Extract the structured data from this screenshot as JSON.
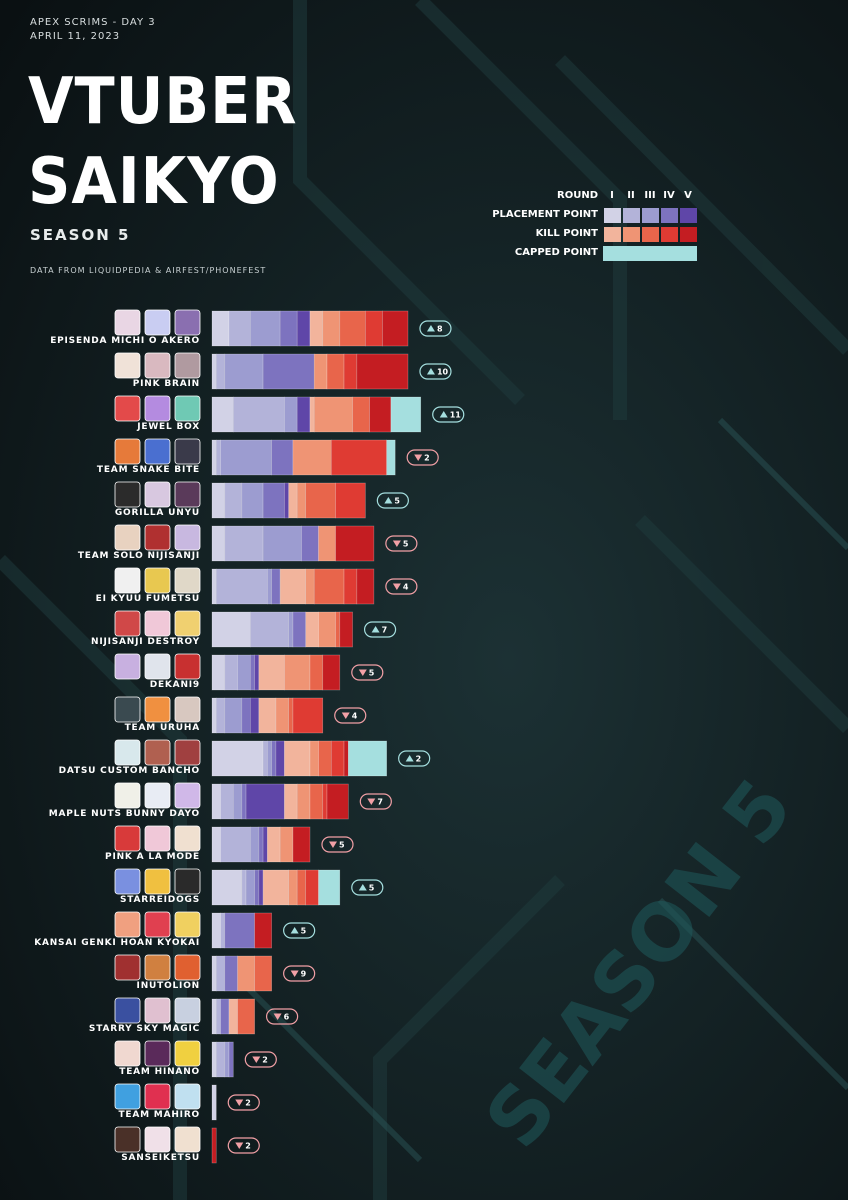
{
  "header": {
    "kicker_1": "APEX SCRIMS - DAY 3",
    "kicker_2": "APRIL 11, 2023",
    "title_line_1": "VTUBER",
    "title_line_2": "SAIKYO",
    "subtitle": "SEASON 5",
    "source": "DATA FROM LIQUIDPEDIA & AIRFEST/PHONEFEST",
    "background_watermark": "SEASON 5"
  },
  "legend": {
    "round_label": "ROUND",
    "rounds": [
      "I",
      "II",
      "III",
      "IV",
      "V"
    ],
    "placement_label": "PLACEMENT POINT",
    "kill_label": "KILL POINT",
    "capped_label": "CAPPED POINT",
    "placement_colors": [
      "#d2d2e6",
      "#b3b3d9",
      "#9c9cd0",
      "#7d73bf",
      "#5f46a8"
    ],
    "kill_colors": [
      "#f2b49c",
      "#ef9474",
      "#e8654b",
      "#df3b33",
      "#c41d22"
    ],
    "capped_color": "#a5dfdf"
  },
  "chart_data": {
    "type": "bar",
    "orientation": "horizontal",
    "stacked": true,
    "title": "VTUBER SAIKYO",
    "subtitle": "SEASON 5",
    "categories": [
      "EPISENDA MICHI O AKERO",
      "PINK BRAIN",
      "JEWEL BOX",
      "TEAM SNAKE BITE",
      "GORILLA UNYU",
      "TEAM SOLO NIJISANJI",
      "EI KYUU FUMETSU",
      "NIJISANJI DESTROY",
      "DEKANI9",
      "TEAM URUHA",
      "DATSU CUSTOM BANCHO",
      "MAPLE NUTS BUNNY DAYO",
      "PINK A LA MODE",
      "STARREIDOGS",
      "KANSAI GENKI HOAN KYOKAI",
      "INUTOLION",
      "STARRY SKY MAGIC",
      "TEAM HINANO",
      "TEAM MAHIRO",
      "SANSEIKETSU"
    ],
    "series": [
      {
        "name": "PLACEMENT POINT I",
        "group": "placement",
        "values": [
          8,
          2,
          10,
          2,
          6,
          6,
          2,
          18,
          6,
          2,
          24,
          4,
          4,
          14,
          4,
          2,
          2,
          2,
          2,
          0
        ]
      },
      {
        "name": "PLACEMENT POINT II",
        "group": "placement",
        "values": [
          10,
          4,
          24,
          2,
          8,
          18,
          24,
          18,
          6,
          4,
          2,
          6,
          14,
          2,
          2,
          4,
          2,
          4,
          0,
          0
        ]
      },
      {
        "name": "PLACEMENT POINT III",
        "group": "placement",
        "values": [
          14,
          18,
          6,
          24,
          10,
          18,
          2,
          2,
          6,
          8,
          2,
          4,
          4,
          4,
          0,
          0,
          0,
          2,
          0,
          0
        ]
      },
      {
        "name": "PLACEMENT POINT IV",
        "group": "placement",
        "values": [
          8,
          24,
          0,
          10,
          10,
          8,
          4,
          6,
          2,
          4,
          2,
          2,
          2,
          2,
          14,
          6,
          4,
          2,
          0,
          0
        ]
      },
      {
        "name": "PLACEMENT POINT V",
        "group": "placement",
        "values": [
          6,
          0,
          6,
          0,
          2,
          0,
          0,
          0,
          2,
          4,
          4,
          18,
          2,
          2,
          0,
          0,
          0,
          0,
          0,
          0
        ]
      },
      {
        "name": "KILL POINT I",
        "group": "kill",
        "values": [
          6,
          0,
          2,
          0,
          4,
          0,
          12,
          6,
          12,
          8,
          12,
          6,
          6,
          12,
          0,
          0,
          4,
          0,
          0,
          0
        ]
      },
      {
        "name": "KILL POINT II",
        "group": "kill",
        "values": [
          8,
          6,
          18,
          18,
          4,
          8,
          4,
          8,
          12,
          6,
          4,
          6,
          6,
          4,
          0,
          8,
          0,
          0,
          0,
          0
        ]
      },
      {
        "name": "KILL POINT III",
        "group": "kill",
        "values": [
          12,
          8,
          8,
          0,
          14,
          0,
          14,
          2,
          6,
          2,
          6,
          6,
          0,
          4,
          0,
          8,
          8,
          0,
          0,
          0
        ]
      },
      {
        "name": "KILL POINT IV",
        "group": "kill",
        "values": [
          8,
          6,
          0,
          26,
          14,
          0,
          6,
          0,
          0,
          14,
          6,
          2,
          0,
          6,
          0,
          0,
          0,
          0,
          0,
          0
        ]
      },
      {
        "name": "KILL POINT V",
        "group": "kill",
        "values": [
          12,
          24,
          10,
          0,
          0,
          18,
          8,
          6,
          8,
          0,
          2,
          10,
          8,
          0,
          8,
          0,
          0,
          0,
          0,
          2
        ]
      },
      {
        "name": "CAPPED POINT",
        "group": "capped",
        "values": [
          0,
          0,
          14,
          4,
          0,
          0,
          0,
          0,
          0,
          0,
          18,
          0,
          0,
          10,
          0,
          0,
          0,
          0,
          0,
          0
        ]
      }
    ],
    "rank_change": [
      {
        "dir": "up",
        "value": "8"
      },
      {
        "dir": "up",
        "value": "10"
      },
      {
        "dir": "up",
        "value": "11"
      },
      {
        "dir": "down",
        "value": "2"
      },
      {
        "dir": "up",
        "value": "5"
      },
      {
        "dir": "down",
        "value": "5"
      },
      {
        "dir": "down",
        "value": "4"
      },
      {
        "dir": "up",
        "value": "7"
      },
      {
        "dir": "down",
        "value": "5"
      },
      {
        "dir": "down",
        "value": "4"
      },
      {
        "dir": "up",
        "value": "2"
      },
      {
        "dir": "down",
        "value": "7"
      },
      {
        "dir": "down",
        "value": "5"
      },
      {
        "dir": "up",
        "value": "5"
      },
      {
        "dir": "up",
        "value": "5"
      },
      {
        "dir": "down",
        "value": "9"
      },
      {
        "dir": "down",
        "value": "6"
      },
      {
        "dir": "down",
        "value": "2"
      },
      {
        "dir": "down",
        "value": "2"
      },
      {
        "dir": "down",
        "value": "2"
      }
    ],
    "rank_change_colors": {
      "up": "#a5dfdf",
      "down": "#f2a0a6"
    },
    "avatar_colors": [
      [
        "#e9d6e4",
        "#c9cdf2",
        "#8a6fb0"
      ],
      [
        "#f0e2d8",
        "#d9b9c0",
        "#b09aa0"
      ],
      [
        "#e34a4a",
        "#b48be0",
        "#6fc9b4"
      ],
      [
        "#e67a3a",
        "#4a6fd0",
        "#3a3a4a"
      ],
      [
        "#2b2b2b",
        "#d8c8e0",
        "#5a3a5a"
      ],
      [
        "#e8d2c0",
        "#b03030",
        "#c8b8e0"
      ],
      [
        "#f0f0f0",
        "#e8c850",
        "#e0d8c8"
      ],
      [
        "#d04848",
        "#f0c8d8",
        "#f0d070"
      ],
      [
        "#c8b0e0",
        "#e0e4ec",
        "#c83030"
      ],
      [
        "#3a4a50",
        "#f09040",
        "#d8c8c0"
      ],
      [
        "#d8e8ec",
        "#b06050",
        "#a04040"
      ],
      [
        "#f0f0e8",
        "#e8ecf4",
        "#d0b8e8"
      ],
      [
        "#d83a3a",
        "#f0c8d8",
        "#f0e0d0"
      ],
      [
        "#7a90e0",
        "#f0c040",
        "#2a2a2a"
      ],
      [
        "#f0a080",
        "#e04050",
        "#f0d060"
      ],
      [
        "#a03030",
        "#d08040",
        "#e06030"
      ],
      [
        "#3a50a0",
        "#e0c0d0",
        "#c8d0e0"
      ],
      [
        "#f0d8d0",
        "#5a2a5a",
        "#f0d040"
      ],
      [
        "#40a0e0",
        "#e03050",
        "#c0e0f0"
      ],
      [
        "#4a3028",
        "#f0e0e8",
        "#f0e0d0"
      ]
    ]
  }
}
